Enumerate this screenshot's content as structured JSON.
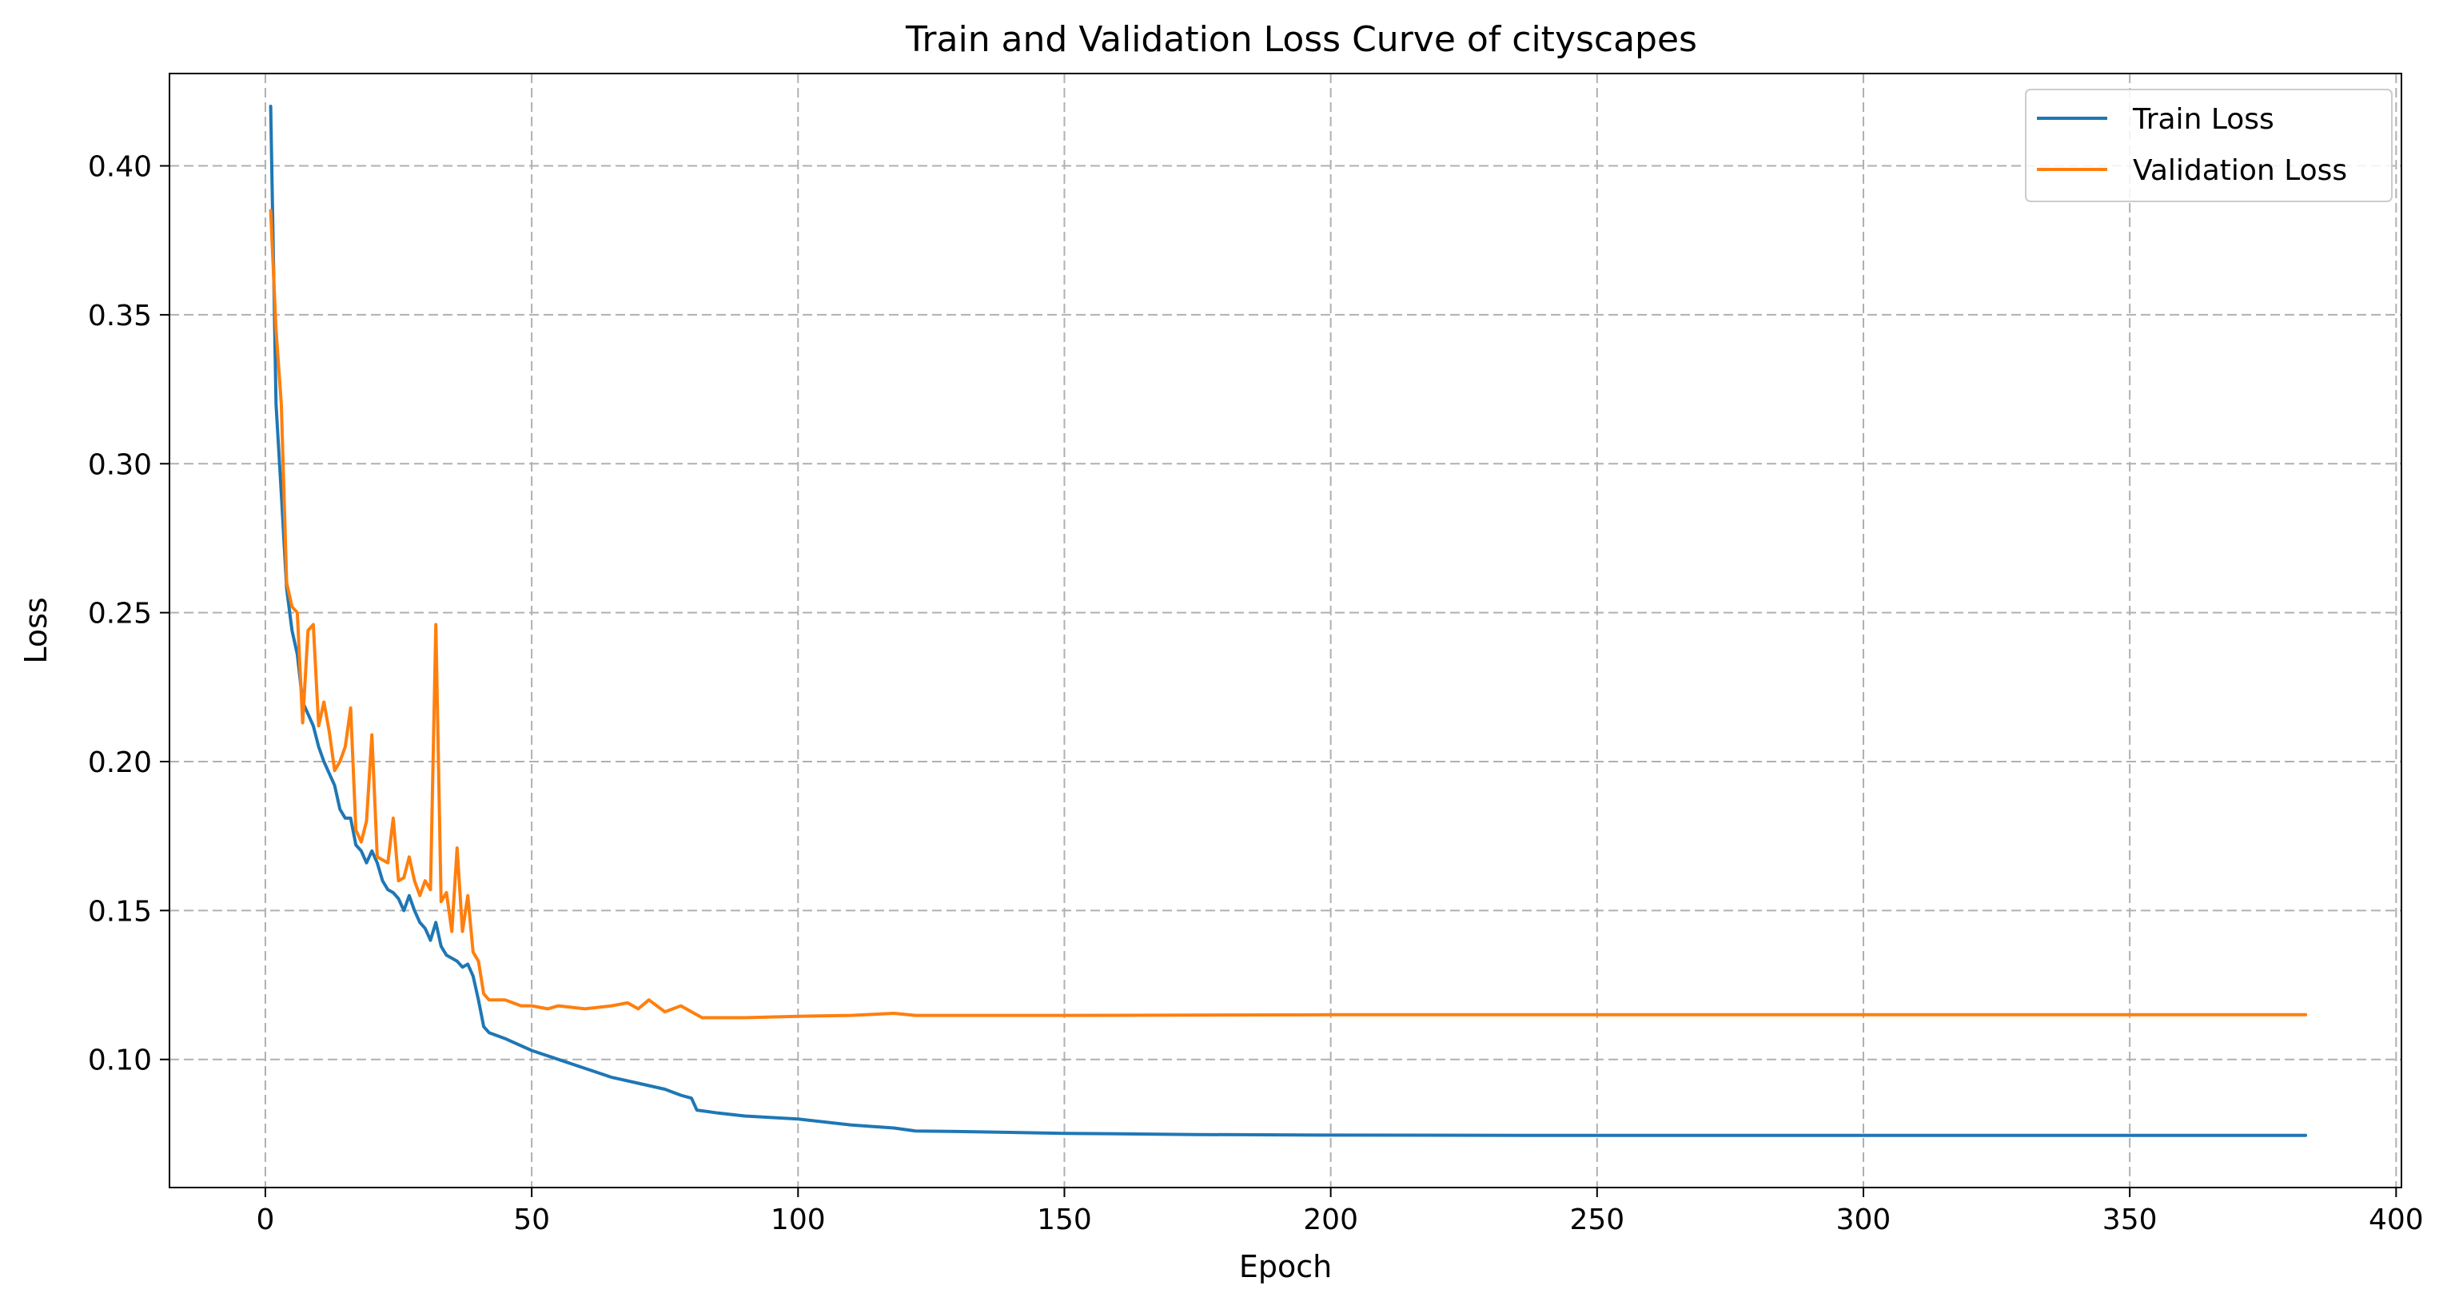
{
  "chart_data": {
    "type": "line",
    "title": "Train and Validation Loss Curve of cityscapes",
    "xlabel": "Epoch",
    "ylabel": "Loss",
    "xlim": [
      -18,
      401
    ],
    "ylim": [
      0.057,
      0.431
    ],
    "xticks": [
      0,
      50,
      100,
      150,
      200,
      250,
      300,
      350,
      400
    ],
    "yticks": [
      0.1,
      0.15,
      0.2,
      0.25,
      0.3,
      0.35,
      0.4
    ],
    "xtick_labels": [
      "0",
      "50",
      "100",
      "150",
      "200",
      "250",
      "300",
      "350",
      "400"
    ],
    "ytick_labels": [
      "0.10",
      "0.15",
      "0.20",
      "0.25",
      "0.30",
      "0.35",
      "0.40"
    ],
    "grid": true,
    "legend_position": "top-right",
    "series": [
      {
        "name": "Train Loss",
        "color": "#1f77b4",
        "points": [
          [
            1,
            0.42
          ],
          [
            2,
            0.32
          ],
          [
            3,
            0.29
          ],
          [
            4,
            0.258
          ],
          [
            5,
            0.244
          ],
          [
            6,
            0.236
          ],
          [
            7,
            0.22
          ],
          [
            8,
            0.216
          ],
          [
            9,
            0.212
          ],
          [
            10,
            0.205
          ],
          [
            11,
            0.2
          ],
          [
            12,
            0.196
          ],
          [
            13,
            0.192
          ],
          [
            14,
            0.184
          ],
          [
            15,
            0.181
          ],
          [
            16,
            0.181
          ],
          [
            17,
            0.172
          ],
          [
            18,
            0.17
          ],
          [
            19,
            0.166
          ],
          [
            20,
            0.17
          ],
          [
            21,
            0.166
          ],
          [
            22,
            0.16
          ],
          [
            23,
            0.157
          ],
          [
            24,
            0.156
          ],
          [
            25,
            0.154
          ],
          [
            26,
            0.15
          ],
          [
            27,
            0.155
          ],
          [
            28,
            0.15
          ],
          [
            29,
            0.146
          ],
          [
            30,
            0.144
          ],
          [
            31,
            0.14
          ],
          [
            32,
            0.146
          ],
          [
            33,
            0.138
          ],
          [
            34,
            0.135
          ],
          [
            35,
            0.134
          ],
          [
            36,
            0.133
          ],
          [
            37,
            0.131
          ],
          [
            38,
            0.132
          ],
          [
            39,
            0.128
          ],
          [
            40,
            0.12
          ],
          [
            41,
            0.111
          ],
          [
            42,
            0.109
          ],
          [
            45,
            0.107
          ],
          [
            50,
            0.103
          ],
          [
            55,
            0.1
          ],
          [
            60,
            0.097
          ],
          [
            65,
            0.094
          ],
          [
            70,
            0.092
          ],
          [
            75,
            0.09
          ],
          [
            78,
            0.088
          ],
          [
            80,
            0.087
          ],
          [
            81,
            0.083
          ],
          [
            85,
            0.082
          ],
          [
            90,
            0.081
          ],
          [
            100,
            0.08
          ],
          [
            110,
            0.078
          ],
          [
            118,
            0.077
          ],
          [
            122,
            0.076
          ],
          [
            130,
            0.0758
          ],
          [
            150,
            0.0752
          ],
          [
            175,
            0.0748
          ],
          [
            200,
            0.0746
          ],
          [
            250,
            0.0745
          ],
          [
            300,
            0.0745
          ],
          [
            350,
            0.0745
          ],
          [
            383,
            0.0745
          ]
        ]
      },
      {
        "name": "Validation Loss",
        "color": "#ff7f0e",
        "points": [
          [
            1,
            0.385
          ],
          [
            2,
            0.345
          ],
          [
            3,
            0.32
          ],
          [
            4,
            0.26
          ],
          [
            5,
            0.252
          ],
          [
            6,
            0.25
          ],
          [
            7,
            0.213
          ],
          [
            8,
            0.244
          ],
          [
            9,
            0.246
          ],
          [
            10,
            0.212
          ],
          [
            11,
            0.22
          ],
          [
            12,
            0.21
          ],
          [
            13,
            0.197
          ],
          [
            14,
            0.2
          ],
          [
            15,
            0.205
          ],
          [
            16,
            0.218
          ],
          [
            17,
            0.177
          ],
          [
            18,
            0.173
          ],
          [
            19,
            0.18
          ],
          [
            20,
            0.209
          ],
          [
            21,
            0.168
          ],
          [
            22,
            0.167
          ],
          [
            23,
            0.166
          ],
          [
            24,
            0.181
          ],
          [
            25,
            0.16
          ],
          [
            26,
            0.161
          ],
          [
            27,
            0.168
          ],
          [
            28,
            0.16
          ],
          [
            29,
            0.155
          ],
          [
            30,
            0.16
          ],
          [
            31,
            0.157
          ],
          [
            32,
            0.246
          ],
          [
            33,
            0.153
          ],
          [
            34,
            0.156
          ],
          [
            35,
            0.143
          ],
          [
            36,
            0.171
          ],
          [
            37,
            0.143
          ],
          [
            38,
            0.155
          ],
          [
            39,
            0.136
          ],
          [
            40,
            0.133
          ],
          [
            41,
            0.122
          ],
          [
            42,
            0.12
          ],
          [
            45,
            0.12
          ],
          [
            48,
            0.118
          ],
          [
            50,
            0.118
          ],
          [
            53,
            0.117
          ],
          [
            55,
            0.118
          ],
          [
            60,
            0.117
          ],
          [
            65,
            0.118
          ],
          [
            68,
            0.119
          ],
          [
            70,
            0.117
          ],
          [
            72,
            0.12
          ],
          [
            75,
            0.116
          ],
          [
            78,
            0.118
          ],
          [
            80,
            0.116
          ],
          [
            82,
            0.114
          ],
          [
            90,
            0.114
          ],
          [
            100,
            0.1145
          ],
          [
            110,
            0.1148
          ],
          [
            118,
            0.1155
          ],
          [
            122,
            0.1148
          ],
          [
            150,
            0.1148
          ],
          [
            200,
            0.115
          ],
          [
            250,
            0.115
          ],
          [
            300,
            0.115
          ],
          [
            350,
            0.115
          ],
          [
            383,
            0.115
          ]
        ]
      }
    ]
  }
}
